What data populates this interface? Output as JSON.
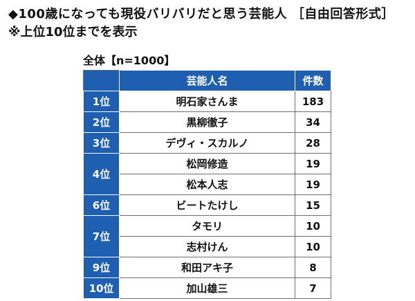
{
  "chart_data": {
    "type": "table",
    "title": "◆100歳になっても現役バリバリだと思う芸能人 ［自由回答形式］",
    "subtitle": "※上位10位までを表示",
    "sample_label": "全体【n=1000】",
    "columns": [
      "",
      "芸能人名",
      "件数"
    ],
    "rows": [
      {
        "rank": "1位",
        "name": "明石家さんま",
        "count": 183
      },
      {
        "rank": "2位",
        "name": "黒柳徹子",
        "count": 34
      },
      {
        "rank": "3位",
        "name": "デヴィ・スカルノ",
        "count": 28
      },
      {
        "rank": "4位",
        "name": "松岡修造",
        "count": 19
      },
      {
        "rank": "",
        "name": "松本人志",
        "count": 19
      },
      {
        "rank": "6位",
        "name": "ビートたけし",
        "count": 15
      },
      {
        "rank": "7位",
        "name": "タモリ",
        "count": 10
      },
      {
        "rank": "",
        "name": "志村けん",
        "count": 10
      },
      {
        "rank": "9位",
        "name": "和田アキ子",
        "count": 8
      },
      {
        "rank": "10位",
        "name": "加山雄三",
        "count": 7
      }
    ]
  }
}
